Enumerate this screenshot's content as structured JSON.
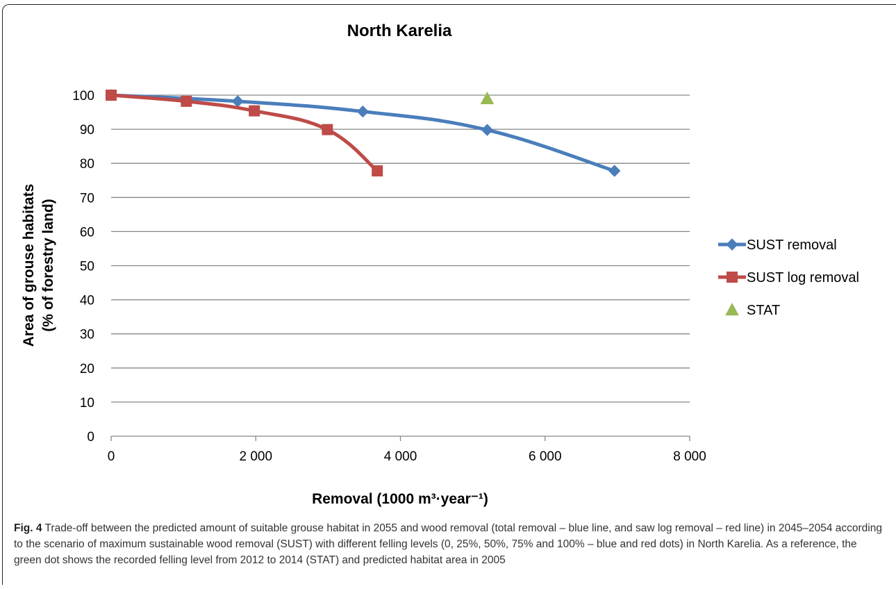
{
  "chart_data": {
    "type": "line",
    "title": "North Karelia",
    "xlabel": "Removal (1000 m³·year⁻¹)",
    "ylabel_line1": "Area of grouse habitats",
    "ylabel_line2": "(% of forestry land)",
    "xlim": [
      0,
      8000
    ],
    "ylim": [
      0,
      100
    ],
    "xticks": [
      0,
      2000,
      4000,
      6000,
      8000
    ],
    "xtick_labels": [
      "0",
      "2 000",
      "4 000",
      "6 000",
      "8 000"
    ],
    "yticks": [
      0,
      10,
      20,
      30,
      40,
      50,
      60,
      70,
      80,
      90,
      100
    ],
    "ytick_labels": [
      "0",
      "10",
      "20",
      "30",
      "40",
      "50",
      "60",
      "70",
      "80",
      "90",
      "100"
    ],
    "grid": "horizontal",
    "legend_position": "right",
    "series": [
      {
        "name": "SUST removal",
        "color": "#4a7ebb",
        "marker": "diamond",
        "line": true,
        "x": [
          0,
          1750,
          3480,
          5200,
          6960
        ],
        "y": [
          100,
          98.2,
          95.2,
          89.8,
          77.8
        ]
      },
      {
        "name": "SUST log removal",
        "color": "#be4b48",
        "marker": "square",
        "line": true,
        "x": [
          0,
          1040,
          1980,
          2990,
          3680
        ],
        "y": [
          100,
          98.2,
          95.4,
          89.9,
          77.8
        ]
      },
      {
        "name": "STAT",
        "color": "#98b954",
        "marker": "triangle",
        "line": false,
        "x": [
          5200
        ],
        "y": [
          99
        ]
      }
    ]
  },
  "caption": {
    "label": "Fig. 4",
    "text": "Trade-off between the predicted amount of suitable grouse habitat in 2055 and wood removal (total removal – blue line, and saw log removal – red line) in 2045–2054 according to the scenario of maximum sustainable wood removal (SUST) with different felling levels (0, 25%, 50%, 75% and 100% – blue and red dots) in North Karelia. As a reference, the green dot shows the recorded felling level from 2012 to 2014 (STAT) and predicted habitat area in 2005"
  }
}
